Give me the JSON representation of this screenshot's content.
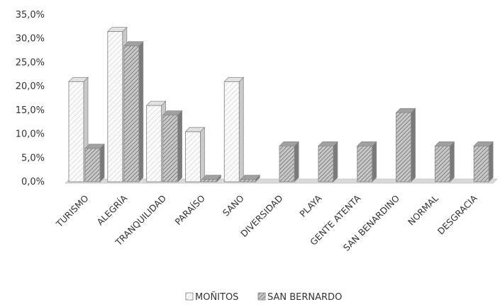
{
  "chart_data": {
    "type": "bar",
    "categories": [
      "TURISMO",
      "ALEGRÍA",
      "TRANQUILIDAD",
      "PARAÍSO",
      "SANO",
      "DIVERSIDAD",
      "PLAYA",
      "GENTE ATENTA",
      "SAN BENARDINO",
      "NORMAL",
      "DESGRACIA"
    ],
    "series": [
      {
        "name": "MOÑITOS",
        "values": [
          21.0,
          31.5,
          16.0,
          10.5,
          21.0,
          0,
          0,
          0,
          0,
          0,
          0
        ],
        "pattern": "light"
      },
      {
        "name": "SAN BERNARDO",
        "values": [
          7.0,
          28.5,
          14.0,
          0.5,
          0.5,
          7.5,
          7.5,
          7.5,
          14.5,
          7.5,
          7.5
        ],
        "pattern": "dark"
      }
    ],
    "yticks": [
      "0,0%",
      "5,0%",
      "10,0%",
      "15,0%",
      "20,0%",
      "25,0%",
      "30,0%",
      "35,0%"
    ],
    "ylim": [
      0,
      35
    ],
    "title": "",
    "xlabel": "",
    "ylabel": "",
    "grid": false,
    "legend": "bottom",
    "colors": {
      "light": "#f2f2f2",
      "dark": "#9a9a9a",
      "edge": "#8c8c8c",
      "floor": "#d9d9d9"
    }
  }
}
